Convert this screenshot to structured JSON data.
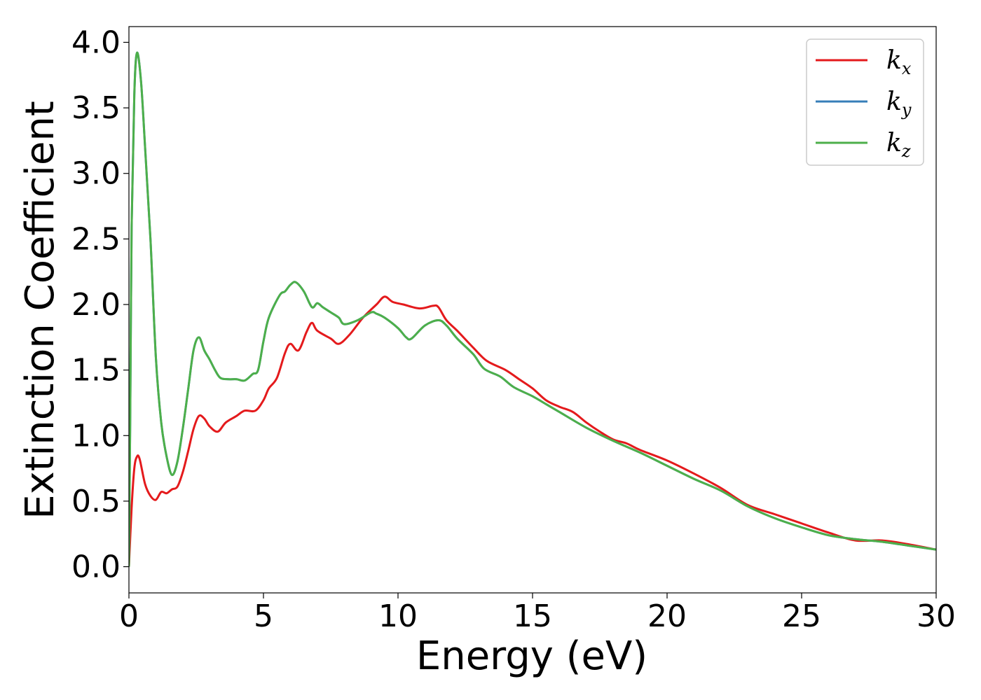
{
  "chart_data": {
    "type": "line",
    "xlabel": "Energy (eV)",
    "ylabel": "Extinction Coefficient",
    "xlim": [
      0,
      30
    ],
    "ylim": [
      -0.2,
      4.12
    ],
    "xticks": [
      0,
      5,
      10,
      15,
      20,
      25,
      30
    ],
    "xtick_labels": [
      "0",
      "5",
      "10",
      "15",
      "20",
      "25",
      "30"
    ],
    "yticks": [
      0.0,
      0.5,
      1.0,
      1.5,
      2.0,
      2.5,
      3.0,
      3.5,
      4.0
    ],
    "ytick_labels": [
      "0.0",
      "0.5",
      "1.0",
      "1.5",
      "2.0",
      "2.5",
      "3.0",
      "3.5",
      "4.0"
    ],
    "grid": false,
    "legend_position": "top-right",
    "series": [
      {
        "name": "k",
        "subscript": "x",
        "color": "#e41a1c",
        "points": [
          [
            0,
            0.0
          ],
          [
            0.1,
            0.45
          ],
          [
            0.2,
            0.75
          ],
          [
            0.3,
            0.84
          ],
          [
            0.4,
            0.82
          ],
          [
            0.6,
            0.63
          ],
          [
            0.8,
            0.54
          ],
          [
            1.0,
            0.51
          ],
          [
            1.2,
            0.57
          ],
          [
            1.4,
            0.56
          ],
          [
            1.6,
            0.59
          ],
          [
            1.8,
            0.61
          ],
          [
            2.0,
            0.72
          ],
          [
            2.2,
            0.88
          ],
          [
            2.4,
            1.05
          ],
          [
            2.6,
            1.15
          ],
          [
            2.8,
            1.13
          ],
          [
            3.0,
            1.07
          ],
          [
            3.3,
            1.03
          ],
          [
            3.6,
            1.1
          ],
          [
            4.0,
            1.15
          ],
          [
            4.3,
            1.19
          ],
          [
            4.7,
            1.19
          ],
          [
            5.0,
            1.27
          ],
          [
            5.2,
            1.36
          ],
          [
            5.5,
            1.44
          ],
          [
            5.8,
            1.63
          ],
          [
            6.0,
            1.7
          ],
          [
            6.3,
            1.65
          ],
          [
            6.6,
            1.79
          ],
          [
            6.8,
            1.86
          ],
          [
            7.0,
            1.8
          ],
          [
            7.5,
            1.74
          ],
          [
            7.8,
            1.7
          ],
          [
            8.2,
            1.77
          ],
          [
            8.7,
            1.9
          ],
          [
            9.2,
            2.0
          ],
          [
            9.5,
            2.06
          ],
          [
            9.8,
            2.02
          ],
          [
            10.2,
            2.0
          ],
          [
            10.8,
            1.97
          ],
          [
            11.3,
            1.99
          ],
          [
            11.5,
            1.98
          ],
          [
            11.8,
            1.88
          ],
          [
            12.2,
            1.8
          ],
          [
            12.8,
            1.67
          ],
          [
            13.3,
            1.57
          ],
          [
            14.0,
            1.5
          ],
          [
            14.5,
            1.43
          ],
          [
            15.0,
            1.36
          ],
          [
            15.5,
            1.27
          ],
          [
            16.0,
            1.22
          ],
          [
            16.5,
            1.18
          ],
          [
            17.0,
            1.1
          ],
          [
            17.5,
            1.03
          ],
          [
            18.0,
            0.97
          ],
          [
            18.5,
            0.94
          ],
          [
            19.0,
            0.89
          ],
          [
            20.0,
            0.81
          ],
          [
            21.0,
            0.71
          ],
          [
            22.0,
            0.6
          ],
          [
            23.0,
            0.47
          ],
          [
            24.0,
            0.4
          ],
          [
            25.0,
            0.33
          ],
          [
            26.0,
            0.26
          ],
          [
            27.0,
            0.2
          ],
          [
            28.0,
            0.2
          ],
          [
            29.0,
            0.17
          ],
          [
            30.0,
            0.13
          ]
        ]
      },
      {
        "name": "k",
        "subscript": "y",
        "color": "#377eb8",
        "points": [
          [
            0,
            0.0
          ],
          [
            0.05,
            1.2
          ],
          [
            0.1,
            2.6
          ],
          [
            0.2,
            3.6
          ],
          [
            0.3,
            3.92
          ],
          [
            0.45,
            3.7
          ],
          [
            0.6,
            3.2
          ],
          [
            0.8,
            2.5
          ],
          [
            1.0,
            1.6
          ],
          [
            1.2,
            1.1
          ],
          [
            1.4,
            0.84
          ],
          [
            1.6,
            0.7
          ],
          [
            1.8,
            0.8
          ],
          [
            2.0,
            1.05
          ],
          [
            2.2,
            1.35
          ],
          [
            2.4,
            1.65
          ],
          [
            2.6,
            1.75
          ],
          [
            2.8,
            1.65
          ],
          [
            3.0,
            1.58
          ],
          [
            3.2,
            1.5
          ],
          [
            3.4,
            1.44
          ],
          [
            3.7,
            1.43
          ],
          [
            4.0,
            1.43
          ],
          [
            4.3,
            1.42
          ],
          [
            4.6,
            1.47
          ],
          [
            4.8,
            1.5
          ],
          [
            5.0,
            1.72
          ],
          [
            5.2,
            1.9
          ],
          [
            5.6,
            2.07
          ],
          [
            5.8,
            2.1
          ],
          [
            6.0,
            2.15
          ],
          [
            6.2,
            2.17
          ],
          [
            6.5,
            2.1
          ],
          [
            6.8,
            1.98
          ],
          [
            7.0,
            2.01
          ],
          [
            7.2,
            1.98
          ],
          [
            7.5,
            1.94
          ],
          [
            7.8,
            1.9
          ],
          [
            8.0,
            1.85
          ],
          [
            8.5,
            1.88
          ],
          [
            9.0,
            1.94
          ],
          [
            9.2,
            1.93
          ],
          [
            9.5,
            1.9
          ],
          [
            10.0,
            1.82
          ],
          [
            10.3,
            1.75
          ],
          [
            10.5,
            1.74
          ],
          [
            11.0,
            1.84
          ],
          [
            11.5,
            1.88
          ],
          [
            11.8,
            1.84
          ],
          [
            12.2,
            1.74
          ],
          [
            12.8,
            1.62
          ],
          [
            13.2,
            1.51
          ],
          [
            13.8,
            1.45
          ],
          [
            14.3,
            1.37
          ],
          [
            15.0,
            1.3
          ],
          [
            15.5,
            1.24
          ],
          [
            16.0,
            1.18
          ],
          [
            17.0,
            1.06
          ],
          [
            18.0,
            0.96
          ],
          [
            19.0,
            0.87
          ],
          [
            20.0,
            0.77
          ],
          [
            21.0,
            0.67
          ],
          [
            22.0,
            0.58
          ],
          [
            23.0,
            0.46
          ],
          [
            24.0,
            0.37
          ],
          [
            25.0,
            0.3
          ],
          [
            26.0,
            0.24
          ],
          [
            27.0,
            0.21
          ],
          [
            28.0,
            0.19
          ],
          [
            29.0,
            0.16
          ],
          [
            30.0,
            0.13
          ]
        ]
      },
      {
        "name": "k",
        "subscript": "z",
        "color": "#4daf4a",
        "points": [
          [
            0,
            0.0
          ],
          [
            0.05,
            1.2
          ],
          [
            0.1,
            2.6
          ],
          [
            0.2,
            3.6
          ],
          [
            0.3,
            3.92
          ],
          [
            0.45,
            3.7
          ],
          [
            0.6,
            3.2
          ],
          [
            0.8,
            2.5
          ],
          [
            1.0,
            1.6
          ],
          [
            1.2,
            1.1
          ],
          [
            1.4,
            0.84
          ],
          [
            1.6,
            0.7
          ],
          [
            1.8,
            0.8
          ],
          [
            2.0,
            1.05
          ],
          [
            2.2,
            1.35
          ],
          [
            2.4,
            1.65
          ],
          [
            2.6,
            1.75
          ],
          [
            2.8,
            1.65
          ],
          [
            3.0,
            1.58
          ],
          [
            3.2,
            1.5
          ],
          [
            3.4,
            1.44
          ],
          [
            3.7,
            1.43
          ],
          [
            4.0,
            1.43
          ],
          [
            4.3,
            1.42
          ],
          [
            4.6,
            1.47
          ],
          [
            4.8,
            1.5
          ],
          [
            5.0,
            1.72
          ],
          [
            5.2,
            1.9
          ],
          [
            5.6,
            2.07
          ],
          [
            5.8,
            2.1
          ],
          [
            6.0,
            2.15
          ],
          [
            6.2,
            2.17
          ],
          [
            6.5,
            2.1
          ],
          [
            6.8,
            1.98
          ],
          [
            7.0,
            2.01
          ],
          [
            7.2,
            1.98
          ],
          [
            7.5,
            1.94
          ],
          [
            7.8,
            1.9
          ],
          [
            8.0,
            1.85
          ],
          [
            8.5,
            1.88
          ],
          [
            9.0,
            1.94
          ],
          [
            9.2,
            1.93
          ],
          [
            9.5,
            1.9
          ],
          [
            10.0,
            1.82
          ],
          [
            10.3,
            1.75
          ],
          [
            10.5,
            1.74
          ],
          [
            11.0,
            1.84
          ],
          [
            11.5,
            1.88
          ],
          [
            11.8,
            1.84
          ],
          [
            12.2,
            1.74
          ],
          [
            12.8,
            1.62
          ],
          [
            13.2,
            1.51
          ],
          [
            13.8,
            1.45
          ],
          [
            14.3,
            1.37
          ],
          [
            15.0,
            1.3
          ],
          [
            15.5,
            1.24
          ],
          [
            16.0,
            1.18
          ],
          [
            17.0,
            1.06
          ],
          [
            18.0,
            0.96
          ],
          [
            19.0,
            0.87
          ],
          [
            20.0,
            0.77
          ],
          [
            21.0,
            0.67
          ],
          [
            22.0,
            0.58
          ],
          [
            23.0,
            0.46
          ],
          [
            24.0,
            0.37
          ],
          [
            25.0,
            0.3
          ],
          [
            26.0,
            0.24
          ],
          [
            27.0,
            0.21
          ],
          [
            28.0,
            0.19
          ],
          [
            29.0,
            0.16
          ],
          [
            30.0,
            0.13
          ]
        ]
      }
    ]
  }
}
